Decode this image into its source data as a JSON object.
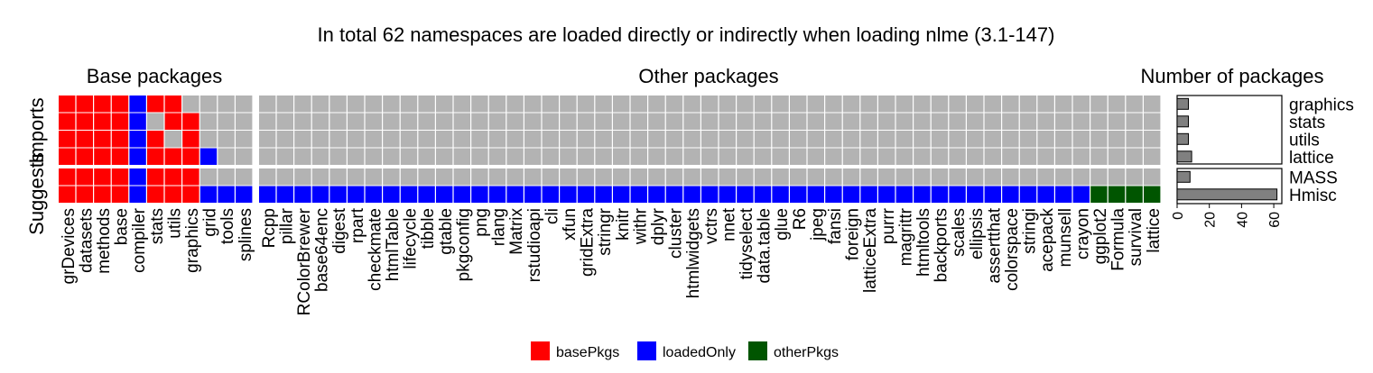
{
  "chart_data": {
    "type": "heatmap",
    "title": "In total 62 namespaces are loaded directly or indirectly when loading nlme (3.1-147)",
    "rows": [
      "graphics",
      "stats",
      "utils",
      "lattice",
      "MASS",
      "Hmisc"
    ],
    "facet_row_labels": {
      "imports": "Imports",
      "suggests": "Suggests"
    },
    "panels": [
      {
        "title": "Base packages",
        "columns": [
          "grDevices",
          "datasets",
          "methods",
          "base",
          "compiler",
          "stats",
          "utils",
          "graphics",
          "grid",
          "tools",
          "splines"
        ]
      },
      {
        "title": "Other packages",
        "columns": [
          "Rcpp",
          "pillar",
          "RColorBrewer",
          "base64enc",
          "digest",
          "rpart",
          "checkmate",
          "htmlTable",
          "lifecycle",
          "tibble",
          "gtable",
          "pkgconfig",
          "png",
          "rlang",
          "Matrix",
          "rstudioapi",
          "cli",
          "xfun",
          "gridExtra",
          "stringr",
          "knitr",
          "withr",
          "dplyr",
          "cluster",
          "htmlwidgets",
          "vctrs",
          "nnet",
          "tidyselect",
          "data.table",
          "glue",
          "R6",
          "jpeg",
          "fansi",
          "foreign",
          "latticeExtra",
          "purrr",
          "magrittr",
          "htmltools",
          "backports",
          "scales",
          "ellipsis",
          "assertthat",
          "colorspace",
          "stringi",
          "acepack",
          "munsell",
          "crayon",
          "ggplot2",
          "Formula",
          "survival",
          "lattice"
        ]
      }
    ],
    "cell_status": {
      "graphics": "BBBBLBB....",
      "stats": "BBBBL.BB...",
      "utils": "BBBBLB.B...",
      "lattice": "BBBBLBBBL..",
      "MASS": "BBBBLBBB...",
      "Hmisc": "BBBBLBBBLLL"
    },
    "hmisc_other_status": "LLLLLLLLLLLLLLLLLLLLLLLLLLLLLLLLLLLLLLLLLLLLLLLOOOO",
    "status_codes": {
      "B": "basePkgs",
      "L": "loadedOnly",
      "O": "otherPkgs",
      ".": "none"
    },
    "bar_panel": {
      "title": "Number of packages",
      "values": {
        "graphics": 7,
        "stats": 7,
        "utils": 7,
        "lattice": 9,
        "MASS": 8,
        "Hmisc": 62
      },
      "xlim": [
        0,
        65
      ],
      "ticks": [
        "0",
        "20",
        "40",
        "60"
      ]
    },
    "legend": [
      {
        "key": "basePkgs",
        "label": "basePkgs",
        "color": "#ff0000"
      },
      {
        "key": "loadedOnly",
        "label": "loadedOnly",
        "color": "#0000ff"
      },
      {
        "key": "otherPkgs",
        "label": "otherPkgs",
        "color": "#005500"
      }
    ],
    "colors": {
      "none": "#b3b3b3",
      "grid_line": "#e8e8e8",
      "bar_fill": "#808080"
    },
    "legend_placement": "bottom"
  }
}
